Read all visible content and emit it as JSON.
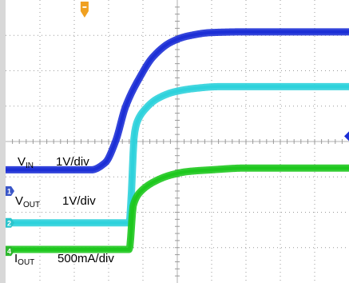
{
  "chart_data": {
    "type": "line",
    "title": "",
    "xlabel": "",
    "ylabel": "",
    "grid": true,
    "x_divisions": 10,
    "y_divisions": 8,
    "xlim": [
      0,
      10
    ],
    "ylim": [
      0,
      8
    ],
    "trigger_marker_color": "#f0a020",
    "series": [
      {
        "id": "vin",
        "channel": "1",
        "name_main": "V",
        "name_sub": "IN",
        "scale": "1V/div",
        "color": "#1c2fd6",
        "marker_color": "#3a56c8",
        "ground_level": 2.6,
        "x": [
          0,
          2.5,
          2.9,
          3.2,
          3.5,
          3.9,
          4.3,
          4.8,
          5.3,
          6.0,
          7.0,
          8.0,
          10.0
        ],
        "y": [
          3.2,
          3.2,
          3.4,
          4.0,
          5.0,
          5.8,
          6.4,
          6.8,
          6.98,
          7.08,
          7.1,
          7.1,
          7.1
        ]
      },
      {
        "id": "vout",
        "channel": "2",
        "name_main": "V",
        "name_sub": "OUT",
        "scale": "1V/div",
        "color": "#2ed2dc",
        "marker_color": "#2bc4cc",
        "ground_level": 1.7,
        "x": [
          0,
          3.6,
          3.65,
          3.75,
          3.85,
          4.05,
          4.4,
          4.9,
          5.5,
          6.2,
          7.0,
          10.0
        ],
        "y": [
          1.7,
          1.7,
          2.3,
          4.2,
          4.6,
          4.9,
          5.2,
          5.4,
          5.5,
          5.55,
          5.55,
          5.55
        ]
      },
      {
        "id": "iout",
        "channel": "4",
        "name_main": "I",
        "name_sub": "OUT",
        "scale": "500mA/div",
        "color": "#1ec81e",
        "marker_color": "#2eb82e",
        "ground_level": 0.9,
        "x": [
          0,
          3.6,
          3.72,
          3.9,
          4.3,
          4.8,
          5.3,
          6.0,
          7.0,
          10.0
        ],
        "y": [
          0.95,
          0.95,
          2.2,
          2.55,
          2.85,
          3.05,
          3.15,
          3.2,
          3.25,
          3.25
        ]
      }
    ]
  }
}
